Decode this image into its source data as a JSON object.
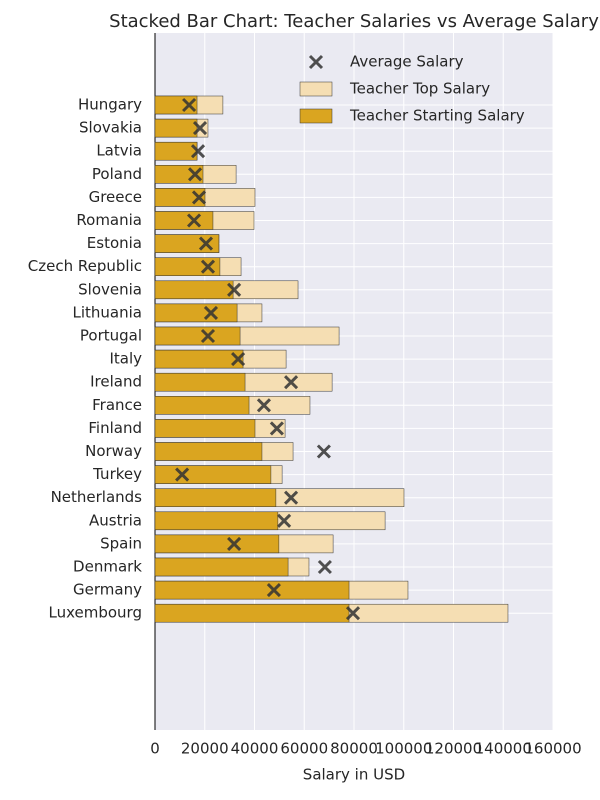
{
  "chart_data": {
    "type": "bar",
    "orientation": "horizontal",
    "title": "Stacked Bar Chart: Teacher Salaries vs Average Salary",
    "x_label": "Salary in USD",
    "categories": [
      "Hungary",
      "Slovakia",
      "Latvia",
      "Poland",
      "Greece",
      "Romania",
      "Estonia",
      "Czech Republic",
      "Slovenia",
      "Lithuania",
      "Portugal",
      "Italy",
      "Ireland",
      "France",
      "Finland",
      "Norway",
      "Turkey",
      "Netherlands",
      "Austria",
      "Spain",
      "Denmark",
      "Germany",
      "Luxembourg"
    ],
    "series": [
      {
        "name": "Teacher Top Salary",
        "type": "bar",
        "color": "#f5deb3",
        "values": [
          27300,
          21300,
          16900,
          32600,
          40200,
          39800,
          25700,
          34600,
          57500,
          43000,
          74000,
          52700,
          71200,
          62300,
          52300,
          55500,
          51100,
          100100,
          92500,
          71600,
          61900,
          101700,
          141900
        ]
      },
      {
        "name": "Teacher Starting Salary",
        "type": "bar",
        "color": "#daa520",
        "values": [
          16900,
          16900,
          16900,
          19300,
          20100,
          23300,
          25700,
          26100,
          31400,
          33000,
          34200,
          35400,
          36200,
          37800,
          40200,
          43000,
          46600,
          48600,
          49400,
          49800,
          53500,
          78000,
          78000
        ]
      },
      {
        "name": "Average Salary",
        "type": "scatter",
        "color": "#333333",
        "values": [
          13700,
          18100,
          17300,
          16100,
          17700,
          15700,
          20500,
          21300,
          31800,
          22500,
          21300,
          33400,
          54700,
          43800,
          49000,
          67900,
          10900,
          54700,
          51900,
          31800,
          68300,
          47800,
          79600
        ]
      }
    ],
    "xlim": [
      0,
      160000
    ],
    "xticks": [
      0,
      20000,
      40000,
      60000,
      80000,
      100000,
      120000,
      140000,
      160000
    ],
    "grid": true,
    "legend": "upper right"
  }
}
